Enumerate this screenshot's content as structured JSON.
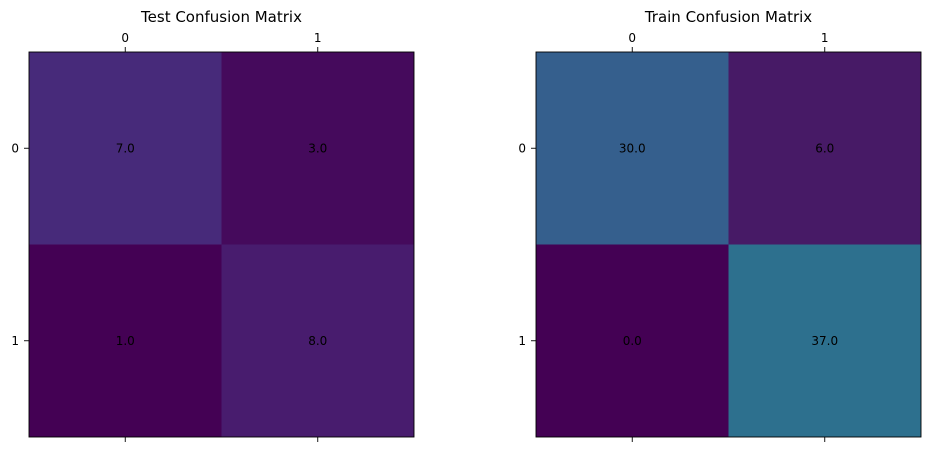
{
  "chart_data": [
    {
      "type": "heatmap",
      "title": "Test Confusion Matrix",
      "x_ticks": [
        "0",
        "1"
      ],
      "y_ticks": [
        "0",
        "1"
      ],
      "values": [
        [
          7.0,
          3.0
        ],
        [
          1.0,
          8.0
        ]
      ],
      "cell_labels": [
        [
          "7.0",
          "3.0"
        ],
        [
          "1.0",
          "8.0"
        ]
      ],
      "colors": [
        [
          "#472a7a",
          "#450a5c"
        ],
        [
          "#440154",
          "#481c6e"
        ]
      ],
      "colormap": "viridis",
      "grid": false
    },
    {
      "type": "heatmap",
      "title": "Train Confusion Matrix",
      "x_ticks": [
        "0",
        "1"
      ],
      "y_ticks": [
        "0",
        "1"
      ],
      "values": [
        [
          30.0,
          6.0
        ],
        [
          0.0,
          37.0
        ]
      ],
      "cell_labels": [
        [
          "30.0",
          "6.0"
        ],
        [
          "0.0",
          "37.0"
        ]
      ],
      "colors": [
        [
          "#355f8d",
          "#471a66"
        ],
        [
          "#440154",
          "#2d708e"
        ]
      ],
      "colormap": "viridis",
      "grid": false
    }
  ]
}
